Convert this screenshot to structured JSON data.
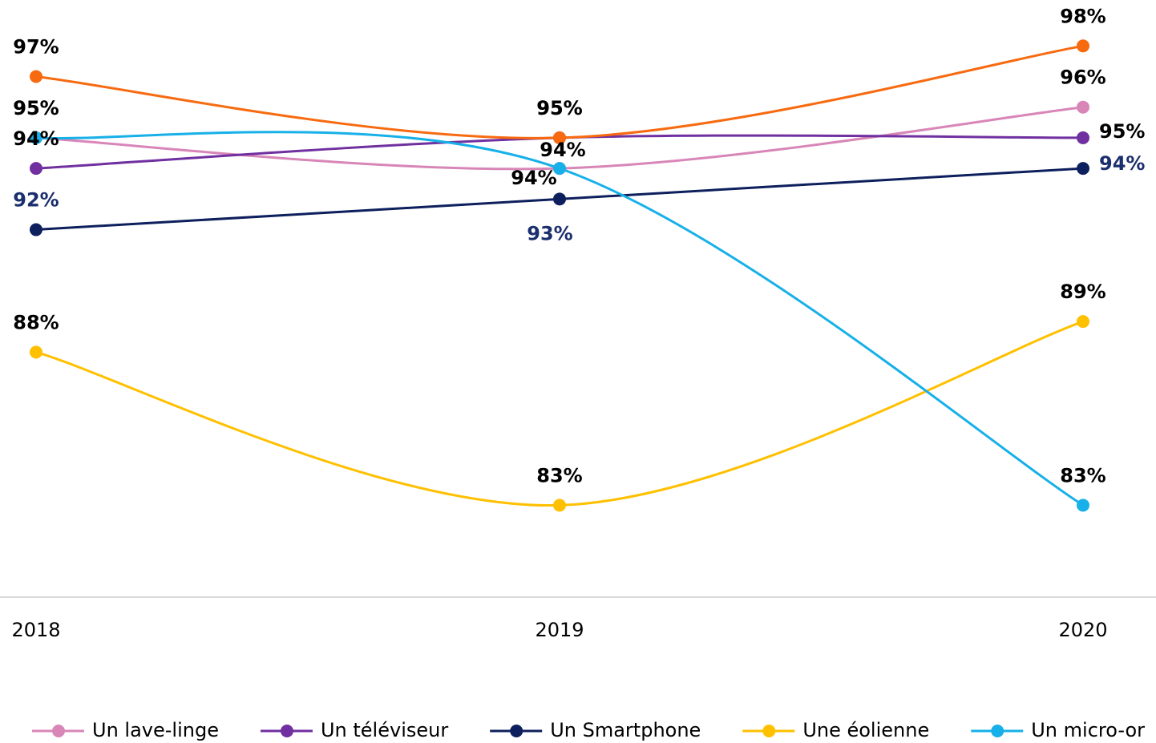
{
  "chart_data": {
    "type": "line",
    "categories": [
      "2018",
      "2019",
      "2020"
    ],
    "ylim": [
      80,
      99.5
    ],
    "smooth": true,
    "series": [
      {
        "name": "Un lave-linge",
        "color": "#d886b8",
        "values": [
          95,
          94,
          96
        ],
        "value_labels": [
          "95%",
          "94%",
          "96%"
        ]
      },
      {
        "name": "Un téléviseur",
        "color": "#7030a0",
        "values": [
          94,
          95,
          95
        ],
        "value_labels": [
          "94%",
          "95%",
          "95%"
        ]
      },
      {
        "name": "Un Smartphone",
        "color": "#0d1f5c",
        "label_color": "#1b2f6e",
        "values": [
          92,
          93,
          94
        ],
        "value_labels": [
          "92%",
          "93%",
          "94%"
        ]
      },
      {
        "name": "Une éolienne",
        "color": "#ffc000",
        "values": [
          88,
          83,
          89
        ],
        "value_labels": [
          "88%",
          "83%",
          "89%"
        ]
      },
      {
        "name": "Un micro-or",
        "color": "#17b0e8",
        "values": [
          95,
          94,
          83
        ],
        "value_labels": [
          "95%",
          "94%",
          "83%"
        ]
      },
      {
        "color": "#f76a10",
        "values": [
          97,
          95,
          98
        ],
        "value_labels": [
          "97%",
          "95%",
          "98%"
        ]
      }
    ]
  }
}
